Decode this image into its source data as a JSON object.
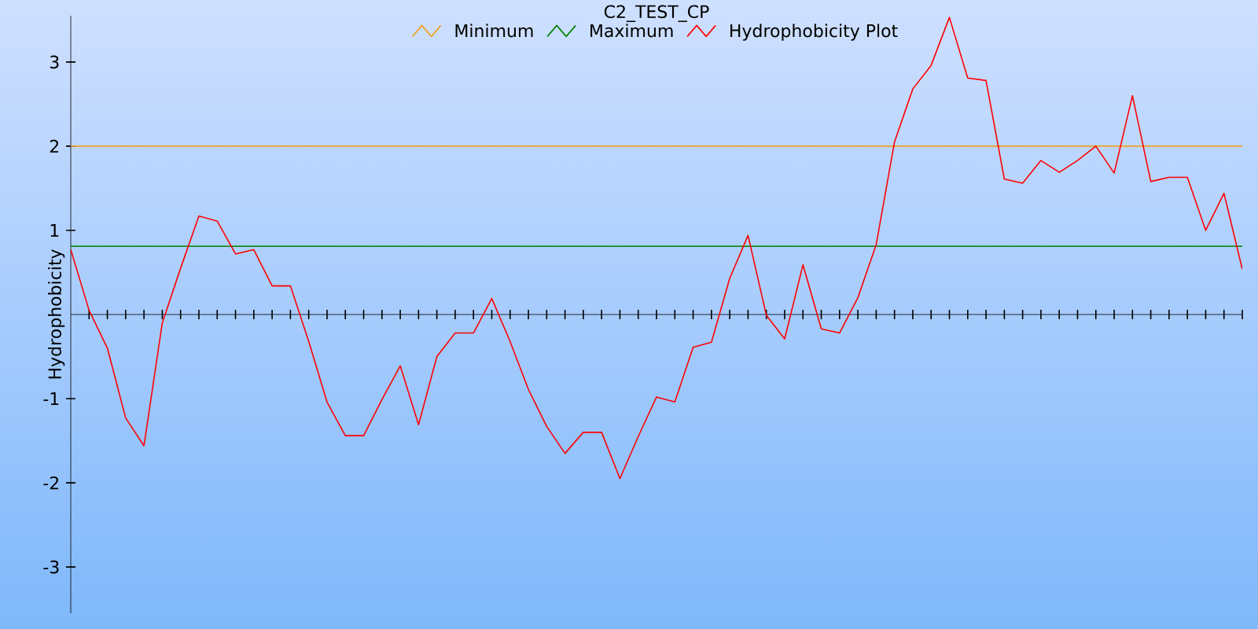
{
  "chart_data": {
    "type": "line",
    "title": "C2_TEST_CP",
    "ylabel": "Hydrophobicity",
    "categories": [
      null,
      null,
      null,
      null,
      null,
      null,
      null,
      null,
      null,
      null,
      null,
      null,
      null,
      null,
      null,
      null,
      null,
      null,
      null,
      null,
      null,
      null,
      null,
      null,
      null,
      null,
      null,
      null,
      null,
      null,
      null,
      null,
      null,
      null,
      null,
      null,
      null,
      null,
      null,
      null,
      null,
      null,
      null,
      null,
      null,
      null,
      null,
      null,
      null,
      null,
      null,
      null,
      null,
      null,
      null,
      null,
      null,
      null,
      null,
      null,
      null,
      null,
      null,
      null,
      null
    ],
    "series": [
      {
        "name": "Minimum",
        "color": "#f0a020",
        "values": [
          2,
          2,
          2,
          2,
          2,
          2,
          2,
          2,
          2,
          2,
          2,
          2,
          2,
          2,
          2,
          2,
          2,
          2,
          2,
          2,
          2,
          2,
          2,
          2,
          2,
          2,
          2,
          2,
          2,
          2,
          2,
          2,
          2,
          2,
          2,
          2,
          2,
          2,
          2,
          2,
          2,
          2,
          2,
          2,
          2,
          2,
          2,
          2,
          2,
          2,
          2,
          2,
          2,
          2,
          2,
          2,
          2,
          2,
          2,
          2,
          2,
          2,
          2,
          2,
          2
        ]
      },
      {
        "name": "Maximum",
        "color": "#008000",
        "values": [
          0.81,
          0.81,
          0.81,
          0.81,
          0.81,
          0.81,
          0.81,
          0.81,
          0.81,
          0.81,
          0.81,
          0.81,
          0.81,
          0.81,
          0.81,
          0.81,
          0.81,
          0.81,
          0.81,
          0.81,
          0.81,
          0.81,
          0.81,
          0.81,
          0.81,
          0.81,
          0.81,
          0.81,
          0.81,
          0.81,
          0.81,
          0.81,
          0.81,
          0.81,
          0.81,
          0.81,
          0.81,
          0.81,
          0.81,
          0.81,
          0.81,
          0.81,
          0.81,
          0.81,
          0.81,
          0.81,
          0.81,
          0.81,
          0.81,
          0.81,
          0.81,
          0.81,
          0.81,
          0.81,
          0.81,
          0.81,
          0.81,
          0.81,
          0.81,
          0.81,
          0.81,
          0.81,
          0.81,
          0.81,
          0.81
        ]
      },
      {
        "name": "Hydrophobicity Plot",
        "color": "#ff0000",
        "values": [
          0.77,
          0.05,
          -0.4,
          -1.23,
          -1.56,
          -0.1,
          0.55,
          1.17,
          1.11,
          0.72,
          0.77,
          0.34,
          0.34,
          -0.32,
          -1.04,
          -1.44,
          -1.44,
          -1.01,
          -0.61,
          -1.31,
          -0.5,
          -0.22,
          -0.22,
          0.19,
          -0.32,
          -0.89,
          -1.33,
          -1.65,
          -1.4,
          -1.4,
          -1.95,
          -1.45,
          -0.98,
          -1.04,
          -0.39,
          -0.33,
          0.43,
          0.94,
          -0.01,
          -0.29,
          0.59,
          -0.17,
          -0.22,
          0.2,
          0.83,
          2.05,
          2.68,
          2.96,
          3.53,
          2.81,
          2.78,
          1.61,
          1.56,
          1.83,
          1.69,
          1.83,
          2.0,
          1.68,
          2.6,
          1.58,
          1.63,
          1.63,
          1.0,
          1.44,
          0.54
        ]
      }
    ],
    "ylim": [
      -3.55,
      3.55
    ],
    "yticks": [
      -3,
      -2,
      -1,
      1,
      2,
      3
    ],
    "legend": "top",
    "marker": "none"
  }
}
